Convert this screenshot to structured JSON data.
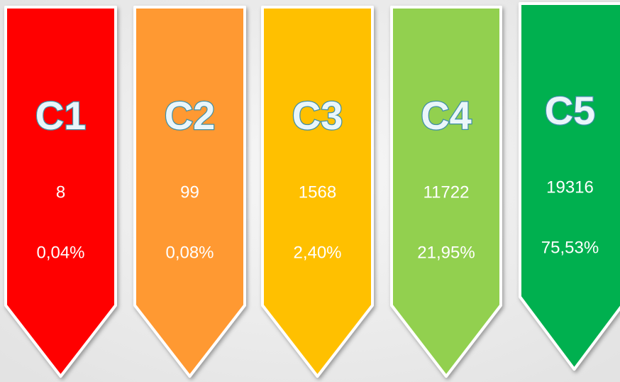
{
  "items": [
    {
      "label": "C1",
      "count": 8,
      "percent": "0,04%",
      "color": "#ff0000"
    },
    {
      "label": "C2",
      "count": 99,
      "percent": "0,08%",
      "color": "#ff9933"
    },
    {
      "label": "C3",
      "count": 1568,
      "percent": "2,40%",
      "color": "#ffc000"
    },
    {
      "label": "C4",
      "count": 11722,
      "percent": "21,95%",
      "color": "#92d050"
    },
    {
      "label": "C5",
      "count": 19316,
      "percent": "75,53%",
      "color": "#00b050"
    }
  ]
}
